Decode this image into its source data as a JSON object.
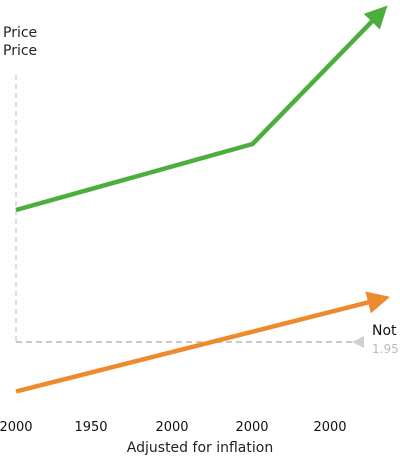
{
  "chart_data": {
    "type": "line",
    "title": "",
    "ylabel_lines": [
      "Price",
      "Price"
    ],
    "xlabel": "Adjusted for inflation",
    "x_tick_labels": [
      "2000",
      "1950",
      "2000",
      "2000",
      "2000"
    ],
    "ylim": [
      0,
      100
    ],
    "series": [
      {
        "color": "#4cae3d",
        "values": [
          40,
          60,
          100
        ],
        "x": [
          0,
          2.85,
          4.4
        ],
        "arrow": true
      },
      {
        "color": "#ee8a2b",
        "values": [
          -15,
          13
        ],
        "x": [
          0,
          4.4
        ],
        "arrow": true
      }
    ],
    "baseline": {
      "value": 0,
      "color": "#c8c8c8",
      "dashed": true
    },
    "annotation": {
      "text": "Not",
      "subtext": "1.95"
    },
    "grid": false
  }
}
